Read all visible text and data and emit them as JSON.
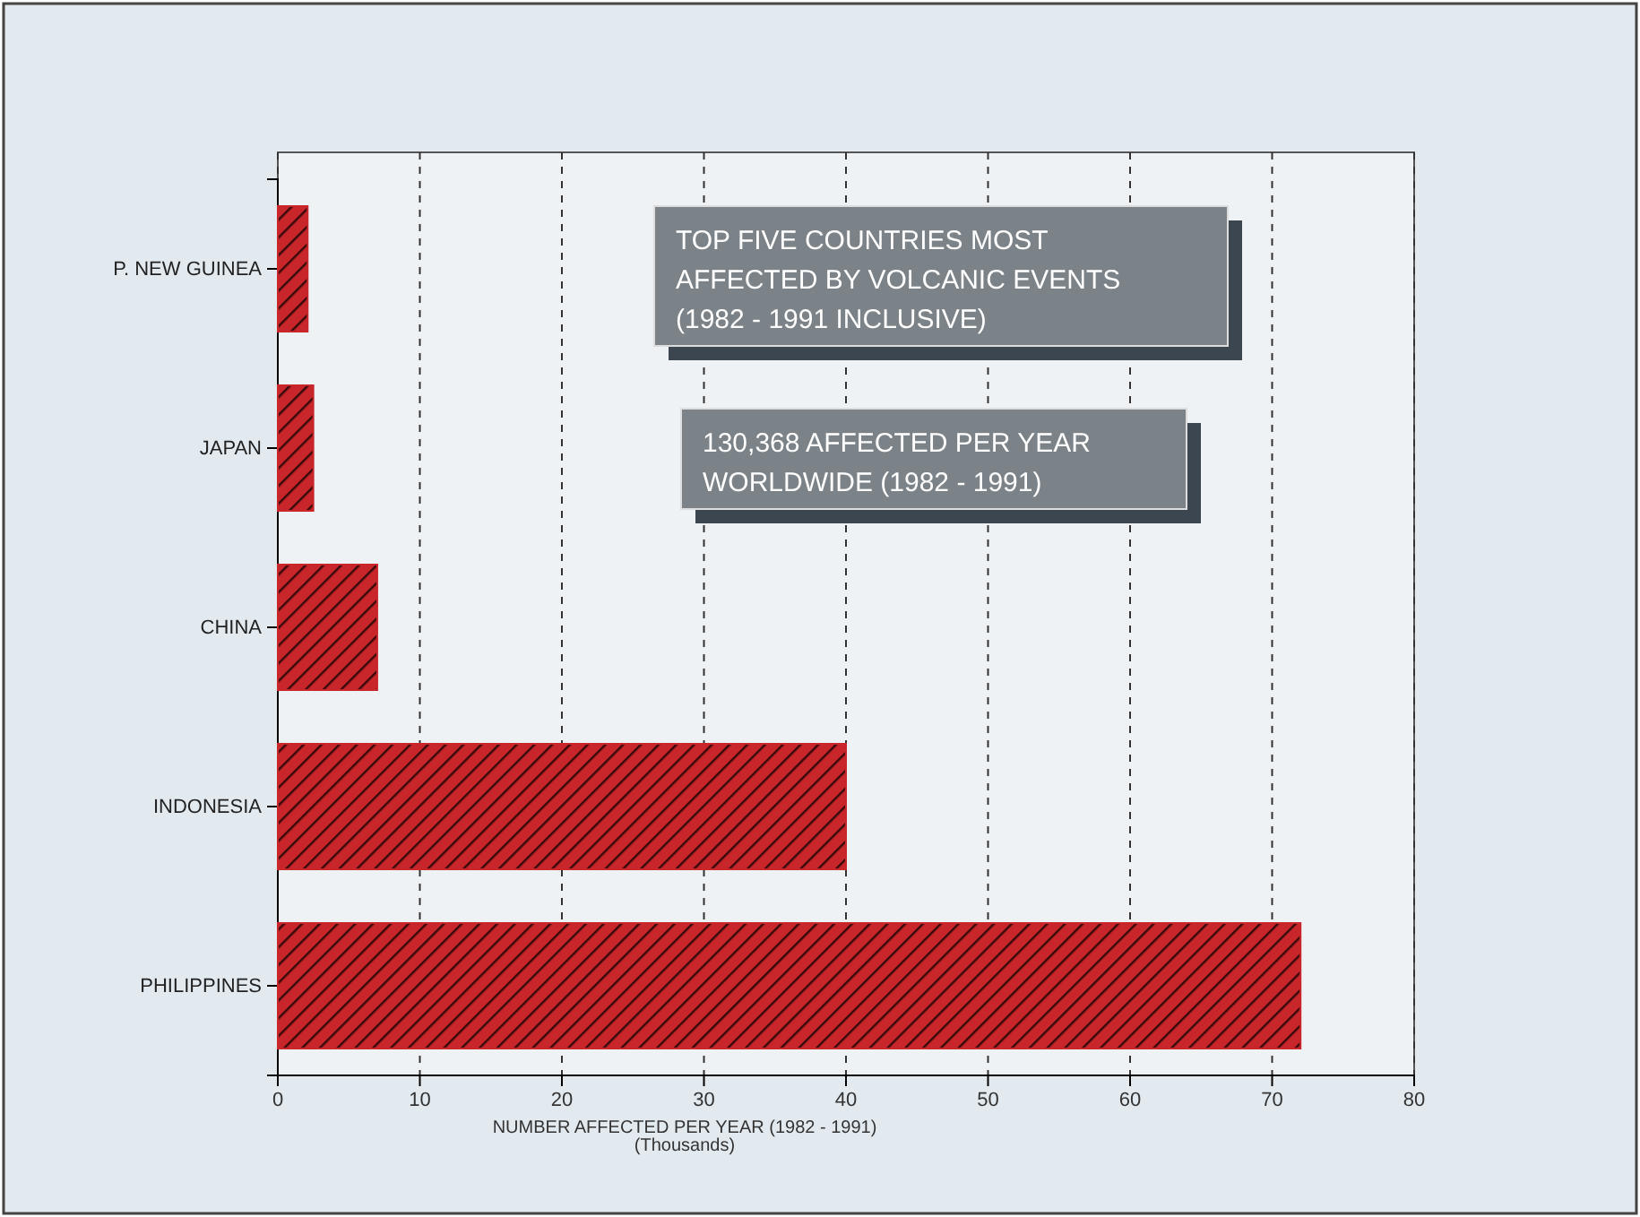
{
  "chart_data": {
    "type": "bar",
    "orientation": "horizontal",
    "title": "TOP FIVE COUNTRIES MOST\nAFFECTED BY VOLCANIC EVENTS\n(1982 - 1991 INCLUSIVE)",
    "annotations": [
      "130,368 AFFECTED PER YEAR\nWORLDWIDE (1982 - 1991)"
    ],
    "xlabel": "NUMBER AFFECTED PER YEAR (1982 - 1991)\n(Thousands)",
    "categories": [
      "P. NEW GUINEA",
      "JAPAN",
      "CHINA",
      "INDONESIA",
      "PHILIPPINES"
    ],
    "values": [
      2.1,
      2.5,
      7,
      40,
      72
    ],
    "color": "#c8262a",
    "xlim": [
      0,
      80
    ],
    "xticks": [
      0,
      10,
      20,
      30,
      40,
      50,
      60,
      70,
      80
    ],
    "grid": "x"
  }
}
